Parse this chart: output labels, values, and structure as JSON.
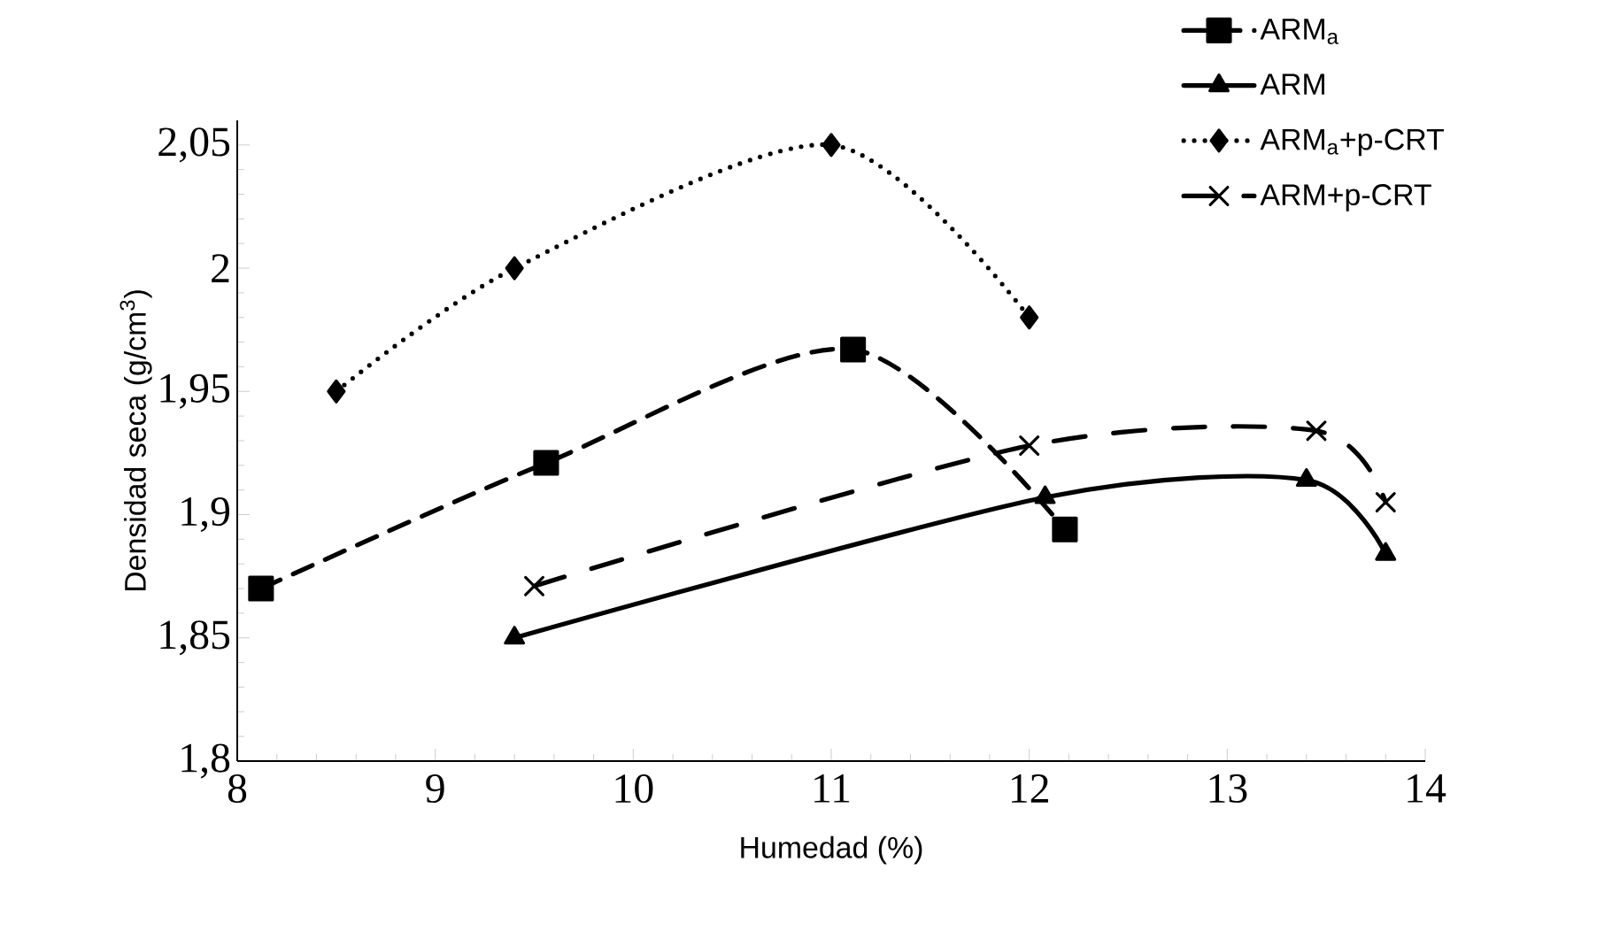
{
  "chart_data": {
    "type": "line",
    "xlabel": "Humedad (%)",
    "ylabel": "Densidad seca (g/cm$^{3}$)",
    "xlim": [
      8,
      14
    ],
    "ylim": [
      1.8,
      2.06
    ],
    "xticks": [
      8,
      9,
      10,
      11,
      12,
      13,
      14
    ],
    "yticks": [
      {
        "value": 1.8,
        "label": "1,8"
      },
      {
        "value": 1.85,
        "label": "1,85"
      },
      {
        "value": 1.9,
        "label": "1,9"
      },
      {
        "value": 1.95,
        "label": "1,95"
      },
      {
        "value": 2.0,
        "label": "2"
      },
      {
        "value": 2.05,
        "label": "2,05"
      }
    ],
    "grid": false,
    "legend": "top right",
    "series": [
      {
        "name": "ARM$_{a}$",
        "color": "#000000",
        "marker": "square",
        "line_style": "dashed",
        "x": [
          8.12,
          9.56,
          11.11,
          12.18
        ],
        "values": [
          1.87,
          1.921,
          1.967,
          1.894
        ]
      },
      {
        "name": "ARM",
        "color": "#000000",
        "marker": "triangle",
        "line_style": "solid",
        "x": [
          9.4,
          12.08,
          13.4,
          13.8
        ],
        "values": [
          1.85,
          1.907,
          1.914,
          1.884
        ]
      },
      {
        "name": "ARM$_{a}$+p-CRT",
        "color": "#000000",
        "marker": "diamond",
        "line_style": "dotted",
        "x": [
          8.5,
          9.4,
          11.0,
          12.0
        ],
        "values": [
          1.95,
          2.0,
          2.05,
          1.98
        ]
      },
      {
        "name": "ARM+p-CRT",
        "color": "#000000",
        "marker": "cross",
        "line_style": "dashdotted",
        "x": [
          9.5,
          12.0,
          13.45,
          13.8
        ],
        "values": [
          1.871,
          1.928,
          1.934,
          1.905
        ]
      }
    ]
  }
}
